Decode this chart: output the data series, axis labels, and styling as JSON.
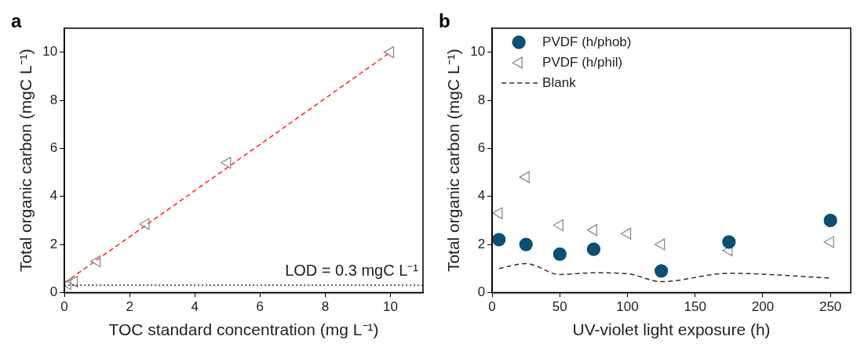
{
  "chart_data": [
    {
      "type": "scatter",
      "title": "a",
      "xlabel": "TOC standard concentration (mg L⁻¹)",
      "ylabel": "Total organic carbon (mgC L⁻¹)",
      "xlim": [
        0,
        11
      ],
      "ylim": [
        0,
        11
      ],
      "xticks": [
        0,
        2,
        4,
        6,
        8,
        10
      ],
      "yticks": [
        0,
        2,
        4,
        6,
        8,
        10
      ],
      "grid": false,
      "legend": false,
      "series": [
        {
          "type": "scatter",
          "marker": "triangle",
          "color": "#8c8c8c",
          "x": [
            0.1,
            0.3,
            1,
            2.5,
            5,
            10
          ],
          "values": [
            0.35,
            0.45,
            1.3,
            2.85,
            5.4,
            10
          ]
        },
        {
          "type": "line",
          "marker": "none",
          "line_style": "dashed",
          "color": "#ff2020",
          "x": [
            0,
            10
          ],
          "values": [
            0.4,
            10
          ]
        }
      ],
      "ref_lines": [
        {
          "axis": "y",
          "value": 0.3,
          "label": "LOD = 0.3 mgC L⁻¹",
          "color": "#000000",
          "line_style": "dotted"
        }
      ]
    },
    {
      "type": "scatter",
      "title": "b",
      "xlabel": "UV-violet light exposure (h)",
      "ylabel": "Total organic carbon (mgC L⁻¹)",
      "xlim": [
        0,
        265
      ],
      "ylim": [
        0,
        11
      ],
      "xticks": [
        0,
        50,
        100,
        150,
        200,
        250
      ],
      "yticks": [
        0,
        2,
        4,
        6,
        8,
        10
      ],
      "grid": false,
      "legend": "top left",
      "series": [
        {
          "type": "scatter",
          "name": "PVDF (h/phob)",
          "marker": "circle",
          "color": "#0b4f74",
          "x": [
            5,
            25,
            50,
            75,
            125,
            175,
            250
          ],
          "values": [
            2.2,
            2.0,
            1.6,
            1.8,
            0.9,
            2.1,
            3.0
          ]
        },
        {
          "type": "scatter",
          "name": "PVDF (h/phil)",
          "marker": "triangle",
          "color": "#8c8c8c",
          "x": [
            5,
            25,
            50,
            75,
            100,
            125,
            175,
            250
          ],
          "values": [
            3.3,
            4.8,
            2.8,
            2.6,
            2.45,
            2.0,
            1.75,
            2.1
          ]
        },
        {
          "type": "line",
          "name": "Blank",
          "marker": "none",
          "line_style": "dashed",
          "color": "#303030",
          "x": [
            5,
            25,
            50,
            75,
            100,
            125,
            175,
            250
          ],
          "values": [
            1.0,
            1.2,
            0.75,
            0.82,
            0.78,
            0.45,
            0.8,
            0.6
          ]
        }
      ]
    }
  ]
}
